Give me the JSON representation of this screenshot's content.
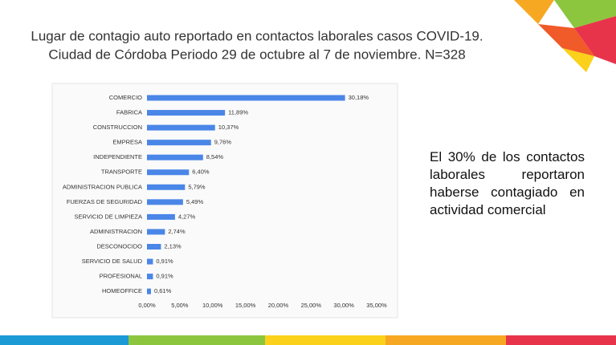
{
  "chart_data": {
    "type": "hbar",
    "title": "Lugar de contagio auto reportado en contactos laborales casos COVID-19.",
    "subtitle": "Ciudad de Córdoba Periodo 29 de octubre al 7 de noviembre. N=328",
    "categories": [
      "COMERCIO",
      "FABRICA",
      "CONSTRUCCION",
      "EMPRESA",
      "INDEPENDIENTE",
      "TRANSPORTE",
      "ADMINISTRACION PUBLICA",
      "FUERZAS DE SEGURIDAD",
      "SERVICIO DE LIMPIEZA",
      "ADMINISTRACION",
      "DESCONOCIDO",
      "SERVICIO DE SALUD",
      "PROFESIONAL",
      "HOMEOFFICE"
    ],
    "values": [
      30.18,
      11.89,
      10.37,
      9.76,
      8.54,
      6.4,
      5.79,
      5.49,
      4.27,
      2.74,
      2.13,
      0.91,
      0.91,
      0.61
    ],
    "value_labels": [
      "30,18%",
      "11,89%",
      "10,37%",
      "9,76%",
      "8,54%",
      "6,40%",
      "5,79%",
      "5,49%",
      "4,27%",
      "2,74%",
      "2,13%",
      "0,91%",
      "0,91%",
      "0,61%"
    ],
    "color": "#4a86e8",
    "xlim": [
      0,
      35
    ],
    "xticks": [
      {
        "value": 0,
        "label": "0,00%"
      },
      {
        "value": 5,
        "label": "5,00%"
      },
      {
        "value": 10,
        "label": "10,00%"
      },
      {
        "value": 15,
        "label": "15,00%"
      },
      {
        "value": 20,
        "label": "20,00%"
      },
      {
        "value": 25,
        "label": "25,00%"
      },
      {
        "value": 30,
        "label": "30,00%"
      },
      {
        "value": 35,
        "label": "35,00%"
      }
    ],
    "grid": false,
    "annotation": "El 30% de los contactos laborales reportaron haberse contagiado en actividad comercial"
  }
}
